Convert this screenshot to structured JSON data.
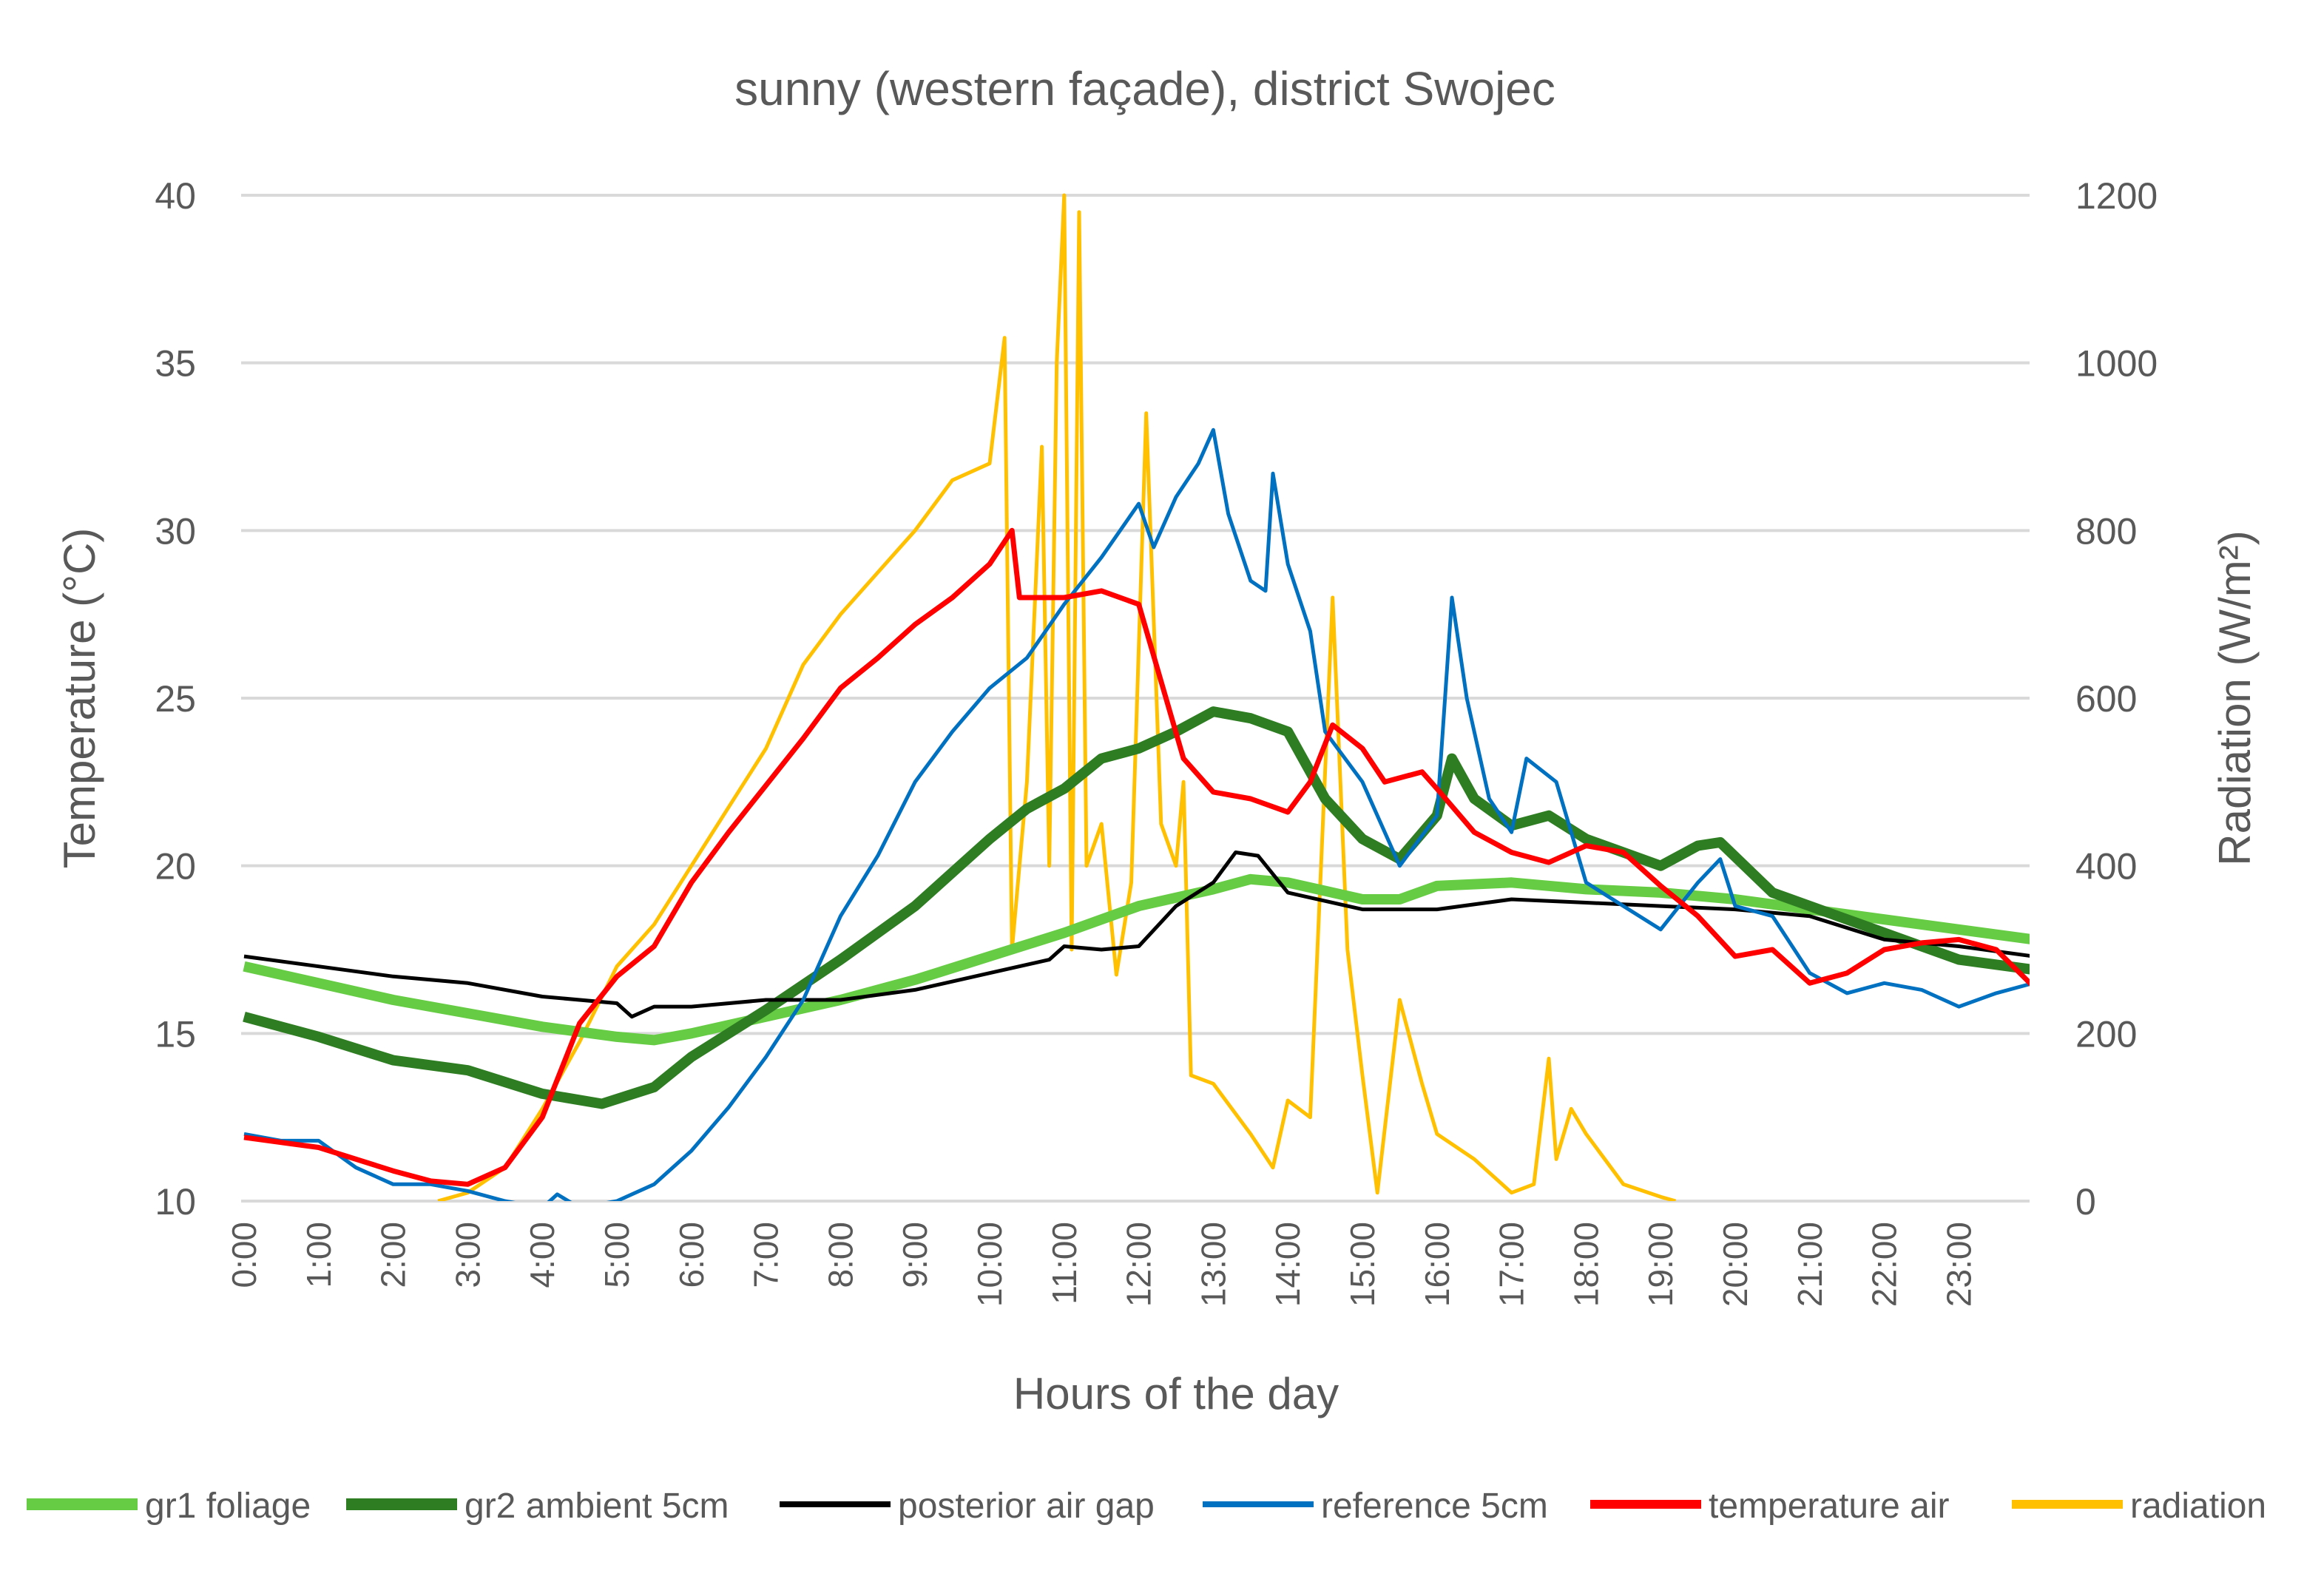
{
  "chart_data": {
    "type": "line",
    "title": "sunny (western façade), district Swojec",
    "xlabel": "Hours of the day",
    "ylabel": "Temperature  (°C)",
    "y2label": "Radiation (W/m²)",
    "xlim": [
      0,
      24
    ],
    "ylim": [
      10,
      40
    ],
    "y2lim": [
      0,
      1200
    ],
    "yticks": [
      10,
      15,
      20,
      25,
      30,
      35,
      40
    ],
    "y2ticks": [
      0,
      200,
      400,
      600,
      800,
      1000,
      1200
    ],
    "xticks": [
      "0:00",
      "1:00",
      "2:00",
      "3:00",
      "4:00",
      "5:00",
      "6:00",
      "7:00",
      "8:00",
      "9:00",
      "10:00",
      "11:00",
      "12:00",
      "13:00",
      "14:00",
      "15:00",
      "16:00",
      "17:00",
      "18:00",
      "19:00",
      "20:00",
      "21:00",
      "22:00",
      "23:00"
    ],
    "grid": true,
    "legend_position": "bottom",
    "series": [
      {
        "name": "gr1 foliage",
        "color": "#66cc44",
        "axis": "left",
        "thick": true,
        "x": [
          0,
          1,
          2,
          3,
          4,
          5,
          5.5,
          6,
          7,
          8,
          9,
          10,
          11,
          12,
          13,
          13.5,
          14,
          15,
          15.5,
          16,
          17,
          18,
          19,
          20,
          21,
          22,
          23,
          24
        ],
        "y": [
          17,
          16.5,
          16,
          15.6,
          15.2,
          14.9,
          14.8,
          15,
          15.5,
          16,
          16.6,
          17.3,
          18,
          18.8,
          19.3,
          19.6,
          19.5,
          19,
          19,
          19.4,
          19.5,
          19.3,
          19.2,
          19,
          18.7,
          18.4,
          18.1,
          17.8
        ]
      },
      {
        "name": "gr2 ambient 5cm",
        "color": "#2e7d22",
        "axis": "left",
        "thick": true,
        "x": [
          0,
          1,
          2,
          3,
          4,
          4.8,
          5.5,
          6,
          7,
          8,
          9,
          10,
          10.5,
          11,
          11.5,
          12,
          12.5,
          13,
          13.5,
          14,
          14.5,
          15,
          15.5,
          16,
          16.2,
          16.5,
          17,
          17.5,
          18,
          19,
          19.5,
          19.8,
          20.5,
          21,
          22,
          23,
          24
        ],
        "y": [
          15.5,
          14.9,
          14.2,
          13.9,
          13.2,
          12.9,
          13.4,
          14.3,
          15.7,
          17.2,
          18.8,
          20.8,
          21.7,
          22.3,
          23.2,
          23.5,
          24,
          24.6,
          24.4,
          24,
          22,
          20.8,
          20.2,
          21.5,
          23.2,
          22,
          21.2,
          21.5,
          20.8,
          20,
          20.6,
          20.7,
          19.2,
          18.8,
          18,
          17.2,
          16.9
        ]
      },
      {
        "name": "posterior air gap",
        "color": "#000000",
        "axis": "left",
        "thick": false,
        "x": [
          0,
          1,
          2,
          3,
          4,
          5,
          5.2,
          5.5,
          6,
          7,
          8,
          9,
          10,
          10.8,
          11,
          11.5,
          12,
          12.5,
          13,
          13.3,
          13.6,
          14,
          15,
          16,
          17,
          18,
          19,
          20,
          21,
          22,
          23,
          24
        ],
        "y": [
          17.3,
          17,
          16.7,
          16.5,
          16.1,
          15.9,
          15.5,
          15.8,
          15.8,
          16,
          16,
          16.3,
          16.8,
          17.2,
          17.6,
          17.5,
          17.6,
          18.8,
          19.5,
          20.4,
          20.3,
          19.2,
          18.7,
          18.7,
          19,
          18.9,
          18.8,
          18.7,
          18.5,
          17.8,
          17.6,
          17.3
        ]
      },
      {
        "name": "reference 5cm",
        "color": "#0070c0",
        "axis": "left",
        "thick": false,
        "x": [
          0,
          0.5,
          1,
          1.5,
          2,
          2.5,
          3,
          3.5,
          4,
          4.2,
          4.5,
          5,
          5.5,
          6,
          6.5,
          7,
          7.5,
          8,
          8.5,
          9,
          9.5,
          10,
          10.5,
          11,
          11.5,
          12,
          12.2,
          12.5,
          12.8,
          13,
          13.2,
          13.5,
          13.7,
          13.8,
          14,
          14.3,
          14.5,
          15,
          15.5,
          16,
          16.2,
          16.4,
          16.7,
          17,
          17.2,
          17.6,
          18,
          18.5,
          19,
          19.5,
          19.8,
          20,
          20.5,
          21,
          21.5,
          22,
          22.5,
          23,
          23.5,
          24
        ],
        "y": [
          12,
          11.8,
          11.8,
          11,
          10.5,
          10.5,
          10.3,
          10,
          9.8,
          10.2,
          9.8,
          10,
          10.5,
          11.5,
          12.8,
          14.3,
          16,
          18.5,
          20.3,
          22.5,
          24,
          25.3,
          26.2,
          27.8,
          29.2,
          30.8,
          29.5,
          31,
          32,
          33,
          30.5,
          28.5,
          28.2,
          31.7,
          29,
          27,
          24,
          22.5,
          20,
          21.5,
          28,
          25,
          22,
          21,
          23.2,
          22.5,
          19.5,
          18.8,
          18.1,
          19.5,
          20.2,
          18.8,
          18.5,
          16.8,
          16.2,
          16.5,
          16.3,
          15.8,
          16.2,
          16.5
        ]
      },
      {
        "name": "temperature air",
        "color": "#ff0000",
        "axis": "left",
        "thick": false,
        "x": [
          0,
          1,
          2,
          2.5,
          3,
          3.5,
          4,
          4.5,
          5,
          5.5,
          6,
          6.5,
          7,
          7.5,
          8,
          8.5,
          9,
          9.5,
          10,
          10.3,
          10.4,
          11,
          11.5,
          12,
          12.3,
          12.6,
          13,
          13.5,
          14,
          14.3,
          14.6,
          15,
          15.3,
          15.8,
          16,
          16.5,
          17,
          17.5,
          18,
          18.5,
          19,
          19.5,
          20,
          20.5,
          21,
          21.5,
          22,
          22.5,
          23,
          23.5,
          24
        ],
        "y": [
          11.9,
          11.6,
          10.9,
          10.6,
          10.5,
          11,
          12.5,
          15.3,
          16.7,
          17.6,
          19.5,
          21,
          22.4,
          23.8,
          25.3,
          26.2,
          27.2,
          28,
          29,
          30,
          28,
          28,
          28.2,
          27.8,
          25.5,
          23.2,
          22.2,
          22,
          21.6,
          22.5,
          24.2,
          23.5,
          22.5,
          22.8,
          22.3,
          21,
          20.4,
          20.1,
          20.6,
          20.4,
          19.4,
          18.5,
          17.3,
          17.5,
          16.5,
          16.8,
          17.5,
          17.7,
          17.8,
          17.5,
          16.4
        ]
      },
      {
        "name": "radiation",
        "color": "#ffc000",
        "axis": "right",
        "thick": false,
        "x": [
          2.6,
          3,
          3.5,
          4,
          4.5,
          5,
          5.5,
          6,
          6.5,
          7,
          7.5,
          8,
          8.5,
          9,
          9.5,
          10,
          10.2,
          10.3,
          10.5,
          10.7,
          10.8,
          10.9,
          11,
          11.1,
          11.2,
          11.3,
          11.5,
          11.7,
          11.9,
          12.1,
          12.3,
          12.5,
          12.6,
          12.7,
          13,
          13.5,
          13.8,
          14,
          14.3,
          14.6,
          14.8,
          15,
          15.2,
          15.5,
          15.8,
          16,
          16.5,
          17,
          17.3,
          17.5,
          17.6,
          17.8,
          18,
          18.5,
          19,
          19.2
        ],
        "y": [
          0,
          10,
          40,
          110,
          190,
          280,
          330,
          400,
          470,
          540,
          640,
          700,
          750,
          800,
          860,
          880,
          1030,
          300,
          500,
          900,
          400,
          1000,
          1200,
          300,
          1180,
          400,
          450,
          270,
          380,
          940,
          450,
          400,
          500,
          150,
          140,
          80,
          40,
          120,
          100,
          720,
          300,
          150,
          10,
          240,
          140,
          80,
          50,
          10,
          20,
          170,
          50,
          110,
          80,
          20,
          5,
          0
        ]
      }
    ]
  }
}
